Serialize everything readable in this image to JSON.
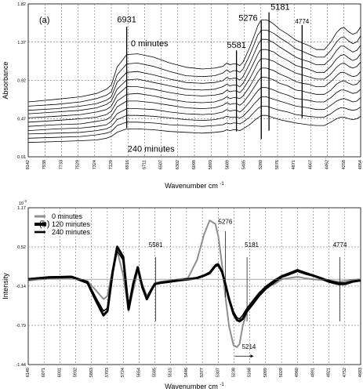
{
  "chart_data": [
    {
      "type": "line",
      "panel_label": "(a)",
      "xlabel": "Wavenumber cm",
      "xlabel_sup": "-1",
      "ylabel": "Absorbance",
      "x_ticks": [
        "8142",
        "7938",
        "7733",
        "7529",
        "7324",
        "7120",
        "6916",
        "6711",
        "6507",
        "6302",
        "6098",
        "5893",
        "5689",
        "5485",
        "5280",
        "5076",
        "4871",
        "4667",
        "4462",
        "4258",
        "4054"
      ],
      "y_ticks": [
        "0.01",
        "0.47",
        "0.92",
        "1.37",
        "1.82"
      ],
      "xlim": [
        8142,
        4054
      ],
      "ylim": [
        0.01,
        1.82
      ],
      "grid": true,
      "series_label_top": "0 minutes",
      "series_label_bottom": "240 minutes",
      "annotations": [
        {
          "text": "6931",
          "x": 6931
        },
        {
          "text": "5581",
          "x": 5581
        },
        {
          "text": "5276",
          "x": 5276
        },
        {
          "text": "5181",
          "x": 5181
        },
        {
          "text": "4774",
          "x": 4774
        }
      ],
      "x": [
        8142,
        7800,
        7500,
        7300,
        7180,
        7120,
        7050,
        6931,
        6800,
        6600,
        6400,
        6200,
        6000,
        5850,
        5750,
        5700,
        5660,
        5620,
        5581,
        5540,
        5500,
        5420,
        5360,
        5320,
        5290,
        5276,
        5250,
        5215,
        5181,
        5120,
        5050,
        4950,
        4850,
        4774,
        4700,
        4600,
        4500,
        4420,
        4350,
        4300,
        4258,
        4200,
        4150,
        4100,
        4054
      ],
      "series": [
        {
          "values": [
            0.66,
            0.69,
            0.72,
            0.76,
            0.81,
            0.86,
            1.07,
            1.22,
            1.23,
            1.19,
            1.12,
            1.07,
            1.05,
            1.06,
            1.08,
            1.12,
            1.1,
            1.11,
            1.11,
            1.09,
            1.13,
            1.3,
            1.45,
            1.56,
            1.61,
            1.63,
            1.63,
            1.63,
            1.62,
            1.58,
            1.52,
            1.46,
            1.39,
            1.36,
            1.33,
            1.28,
            1.28,
            1.37,
            1.48,
            1.53,
            1.54,
            1.49,
            1.46,
            1.48,
            1.55
          ]
        },
        {
          "values": [
            0.61,
            0.63,
            0.66,
            0.7,
            0.74,
            0.78,
            0.98,
            1.11,
            1.12,
            1.08,
            1.02,
            0.97,
            0.96,
            0.97,
            1.0,
            1.04,
            1.01,
            1.03,
            1.03,
            1.01,
            1.05,
            1.21,
            1.35,
            1.45,
            1.49,
            1.51,
            1.51,
            1.51,
            1.5,
            1.47,
            1.42,
            1.36,
            1.29,
            1.26,
            1.23,
            1.19,
            1.19,
            1.27,
            1.37,
            1.42,
            1.43,
            1.38,
            1.35,
            1.37,
            1.44
          ]
        },
        {
          "values": [
            0.56,
            0.58,
            0.61,
            0.64,
            0.68,
            0.72,
            0.89,
            1.01,
            1.02,
            0.98,
            0.93,
            0.89,
            0.88,
            0.89,
            0.91,
            0.95,
            0.93,
            0.94,
            0.94,
            0.92,
            0.96,
            1.11,
            1.24,
            1.33,
            1.38,
            1.4,
            1.4,
            1.4,
            1.39,
            1.36,
            1.31,
            1.25,
            1.19,
            1.16,
            1.14,
            1.1,
            1.1,
            1.17,
            1.27,
            1.32,
            1.32,
            1.28,
            1.25,
            1.27,
            1.33
          ]
        },
        {
          "values": [
            0.52,
            0.54,
            0.56,
            0.59,
            0.63,
            0.67,
            0.81,
            0.92,
            0.93,
            0.89,
            0.85,
            0.81,
            0.8,
            0.81,
            0.84,
            0.87,
            0.85,
            0.86,
            0.86,
            0.84,
            0.88,
            1.02,
            1.14,
            1.22,
            1.27,
            1.28,
            1.28,
            1.28,
            1.27,
            1.25,
            1.2,
            1.15,
            1.09,
            1.07,
            1.05,
            1.01,
            1.01,
            1.08,
            1.17,
            1.21,
            1.22,
            1.18,
            1.15,
            1.17,
            1.23
          ]
        },
        {
          "values": [
            0.47,
            0.49,
            0.51,
            0.54,
            0.57,
            0.61,
            0.74,
            0.84,
            0.84,
            0.81,
            0.77,
            0.74,
            0.73,
            0.74,
            0.76,
            0.8,
            0.78,
            0.79,
            0.79,
            0.77,
            0.81,
            0.93,
            1.04,
            1.12,
            1.16,
            1.17,
            1.17,
            1.17,
            1.16,
            1.14,
            1.1,
            1.05,
            1.0,
            0.98,
            0.96,
            0.93,
            0.93,
            0.99,
            1.07,
            1.11,
            1.12,
            1.08,
            1.06,
            1.08,
            1.13
          ]
        },
        {
          "values": [
            0.42,
            0.44,
            0.46,
            0.48,
            0.51,
            0.55,
            0.67,
            0.75,
            0.76,
            0.73,
            0.69,
            0.66,
            0.65,
            0.66,
            0.69,
            0.72,
            0.7,
            0.71,
            0.71,
            0.7,
            0.73,
            0.84,
            0.94,
            1.01,
            1.05,
            1.06,
            1.06,
            1.06,
            1.05,
            1.03,
            0.99,
            0.95,
            0.9,
            0.88,
            0.87,
            0.84,
            0.84,
            0.9,
            0.97,
            1.01,
            1.01,
            0.98,
            0.96,
            0.97,
            1.02
          ]
        },
        {
          "values": [
            0.37,
            0.39,
            0.4,
            0.43,
            0.45,
            0.49,
            0.6,
            0.67,
            0.67,
            0.65,
            0.62,
            0.59,
            0.58,
            0.59,
            0.62,
            0.65,
            0.63,
            0.64,
            0.64,
            0.62,
            0.65,
            0.75,
            0.84,
            0.9,
            0.94,
            0.95,
            0.95,
            0.95,
            0.94,
            0.92,
            0.88,
            0.85,
            0.8,
            0.79,
            0.77,
            0.75,
            0.75,
            0.8,
            0.87,
            0.9,
            0.91,
            0.88,
            0.86,
            0.87,
            0.92
          ]
        },
        {
          "values": [
            0.32,
            0.34,
            0.35,
            0.37,
            0.39,
            0.43,
            0.52,
            0.58,
            0.58,
            0.57,
            0.54,
            0.52,
            0.51,
            0.52,
            0.54,
            0.57,
            0.55,
            0.56,
            0.56,
            0.54,
            0.57,
            0.66,
            0.74,
            0.79,
            0.82,
            0.83,
            0.83,
            0.83,
            0.82,
            0.8,
            0.77,
            0.74,
            0.7,
            0.69,
            0.68,
            0.66,
            0.66,
            0.71,
            0.77,
            0.8,
            0.8,
            0.78,
            0.76,
            0.77,
            0.81
          ]
        },
        {
          "values": [
            0.28,
            0.29,
            0.3,
            0.32,
            0.34,
            0.37,
            0.45,
            0.5,
            0.5,
            0.49,
            0.47,
            0.45,
            0.44,
            0.45,
            0.47,
            0.49,
            0.48,
            0.48,
            0.48,
            0.47,
            0.49,
            0.57,
            0.64,
            0.68,
            0.71,
            0.72,
            0.72,
            0.72,
            0.71,
            0.69,
            0.67,
            0.64,
            0.61,
            0.6,
            0.59,
            0.57,
            0.57,
            0.62,
            0.67,
            0.69,
            0.7,
            0.68,
            0.66,
            0.67,
            0.71
          ]
        },
        {
          "values": [
            0.23,
            0.24,
            0.25,
            0.27,
            0.29,
            0.31,
            0.38,
            0.42,
            0.42,
            0.41,
            0.39,
            0.38,
            0.37,
            0.38,
            0.39,
            0.41,
            0.4,
            0.41,
            0.41,
            0.4,
            0.42,
            0.48,
            0.54,
            0.58,
            0.6,
            0.61,
            0.61,
            0.61,
            0.6,
            0.58,
            0.56,
            0.54,
            0.51,
            0.5,
            0.49,
            0.48,
            0.48,
            0.52,
            0.57,
            0.59,
            0.59,
            0.57,
            0.56,
            0.57,
            0.6
          ]
        },
        {
          "values": [
            0.18,
            0.19,
            0.2,
            0.21,
            0.23,
            0.25,
            0.3,
            0.34,
            0.34,
            0.33,
            0.31,
            0.3,
            0.29,
            0.3,
            0.31,
            0.33,
            0.32,
            0.33,
            0.33,
            0.32,
            0.34,
            0.39,
            0.44,
            0.47,
            0.49,
            0.5,
            0.5,
            0.5,
            0.49,
            0.47,
            0.45,
            0.43,
            0.41,
            0.4,
            0.39,
            0.38,
            0.38,
            0.42,
            0.46,
            0.48,
            0.48,
            0.46,
            0.45,
            0.46,
            0.49
          ]
        }
      ]
    },
    {
      "type": "line",
      "panel_label": "(b)",
      "xlabel": "Wavenumber cm",
      "xlabel_sup": "-1",
      "ylabel": "Intensity",
      "y_multiplier": "10",
      "y_multiplier_exp": "-3",
      "x_ticks": [
        "6140",
        "6071",
        "6001",
        "5932",
        "5863",
        "5793",
        "5724",
        "5654",
        "5585",
        "5515",
        "5446",
        "5377",
        "5307",
        "5238",
        "5168",
        "5099",
        "5029",
        "4960",
        "4891",
        "4821",
        "4752",
        "4683"
      ],
      "y_ticks": [
        "-1.44",
        "-0.79",
        "-0.14",
        "0.52",
        "1.17"
      ],
      "xlim": [
        6140,
        4683
      ],
      "ylim": [
        -1.44,
        1.17
      ],
      "grid": true,
      "legend_position": "top-left",
      "annotations": [
        {
          "text": "5581",
          "x": 5581
        },
        {
          "text": "5276",
          "x": 5276
        },
        {
          "text": "5181",
          "x": 5181
        },
        {
          "text": "5214",
          "x": 5214
        },
        {
          "text": "4774",
          "x": 4774
        }
      ],
      "x": [
        6140,
        6050,
        5950,
        5880,
        5840,
        5810,
        5793,
        5770,
        5750,
        5724,
        5700,
        5680,
        5660,
        5640,
        5620,
        5600,
        5585,
        5560,
        5520,
        5480,
        5440,
        5400,
        5370,
        5345,
        5320,
        5307,
        5290,
        5276,
        5260,
        5240,
        5225,
        5214,
        5200,
        5181,
        5160,
        5130,
        5100,
        5060,
        5029,
        5000,
        4960,
        4930,
        4891,
        4860,
        4821,
        4780,
        4752,
        4720,
        4683
      ],
      "series": [
        {
          "name": "0 minutes",
          "color": "#8f8f8f",
          "stroke": 2,
          "values": [
            -0.04,
            -0.01,
            0.0,
            -0.05,
            -0.22,
            -0.35,
            -0.3,
            0.15,
            0.45,
            0.05,
            -0.55,
            -0.2,
            0.12,
            -0.1,
            -0.3,
            -0.18,
            -0.08,
            -0.06,
            -0.04,
            -0.02,
            0.0,
            0.3,
            0.72,
            0.96,
            0.9,
            0.7,
            0.2,
            -0.3,
            -0.8,
            -1.12,
            -1.15,
            -1.1,
            -0.8,
            -0.55,
            -0.4,
            -0.25,
            -0.15,
            -0.1,
            -0.02,
            0.0,
            0.02,
            0.0,
            -0.02,
            -0.03,
            -0.04,
            -0.06,
            -0.05,
            -0.03,
            -0.02
          ]
        },
        {
          "name": "120 minutes",
          "color": "#000000",
          "stroke": 3,
          "values": [
            -0.02,
            0.01,
            0.02,
            -0.08,
            -0.4,
            -0.62,
            -0.55,
            0.1,
            0.52,
            0.35,
            -0.52,
            -0.1,
            0.18,
            -0.15,
            -0.35,
            -0.2,
            -0.1,
            -0.08,
            -0.06,
            -0.04,
            -0.02,
            0.0,
            0.04,
            0.08,
            0.2,
            0.22,
            0.1,
            -0.1,
            -0.35,
            -0.6,
            -0.7,
            -0.72,
            -0.68,
            -0.55,
            -0.45,
            -0.3,
            -0.18,
            -0.06,
            0.02,
            0.06,
            0.12,
            0.08,
            0.04,
            0.0,
            -0.06,
            -0.1,
            -0.1,
            -0.06,
            -0.04
          ]
        },
        {
          "name": "240 minutes",
          "color": "#000000",
          "stroke": 1.6,
          "values": [
            -0.01,
            0.02,
            0.03,
            -0.06,
            -0.35,
            -0.55,
            -0.5,
            0.08,
            0.45,
            0.3,
            -0.45,
            -0.08,
            0.15,
            -0.12,
            -0.32,
            -0.18,
            -0.1,
            -0.07,
            -0.05,
            -0.03,
            -0.01,
            0.01,
            0.05,
            0.1,
            0.22,
            0.24,
            0.12,
            -0.08,
            -0.32,
            -0.56,
            -0.66,
            -0.68,
            -0.62,
            -0.5,
            -0.4,
            -0.26,
            -0.14,
            -0.03,
            0.04,
            0.08,
            0.14,
            0.1,
            0.05,
            0.01,
            -0.04,
            -0.08,
            -0.08,
            -0.05,
            -0.03
          ]
        }
      ]
    }
  ]
}
